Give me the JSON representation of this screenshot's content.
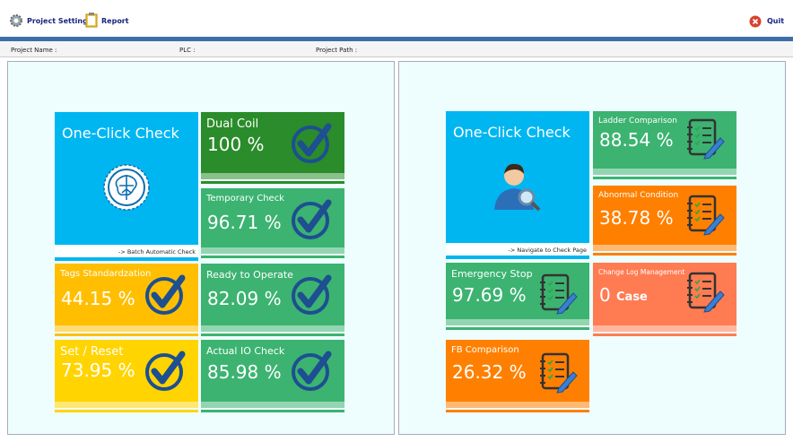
{
  "toolbar": {
    "project_settings": "Project Settings",
    "report": "Report",
    "quit": "Quit"
  },
  "info": {
    "project_name": "Project Name  :",
    "plc": "PLC :",
    "project_path": "Project Path :"
  },
  "left_panel": {
    "main": {
      "title": "One-Click Check",
      "caption": "-> Batch Automatic Check"
    },
    "tiles": [
      {
        "label": "Dual Coil",
        "value": "100 %"
      },
      {
        "label": "Temporary Check",
        "value": "96.71 %"
      },
      {
        "label": "Tags Standardzation",
        "value": "44.15 %"
      },
      {
        "label": "Ready to Operate",
        "value": "82.09 %"
      },
      {
        "label": "Set / Reset",
        "value": "73.95 %"
      },
      {
        "label": "Actual IO Check",
        "value": "85.98 %"
      }
    ]
  },
  "right_panel": {
    "main": {
      "title": "One-Click Check",
      "caption": "-> Navigate to Check Page"
    },
    "tiles": [
      {
        "label": "Ladder Comparison",
        "value": "88.54 %"
      },
      {
        "label": "Abnormal Condition",
        "value": "38.78 %"
      },
      {
        "label": "Emergency Stop",
        "value": "97.69 %"
      },
      {
        "label": "Change Log Management",
        "value": "0",
        "unit": "Case"
      },
      {
        "label": "FB Comparison",
        "value": "26.32 %"
      }
    ]
  }
}
